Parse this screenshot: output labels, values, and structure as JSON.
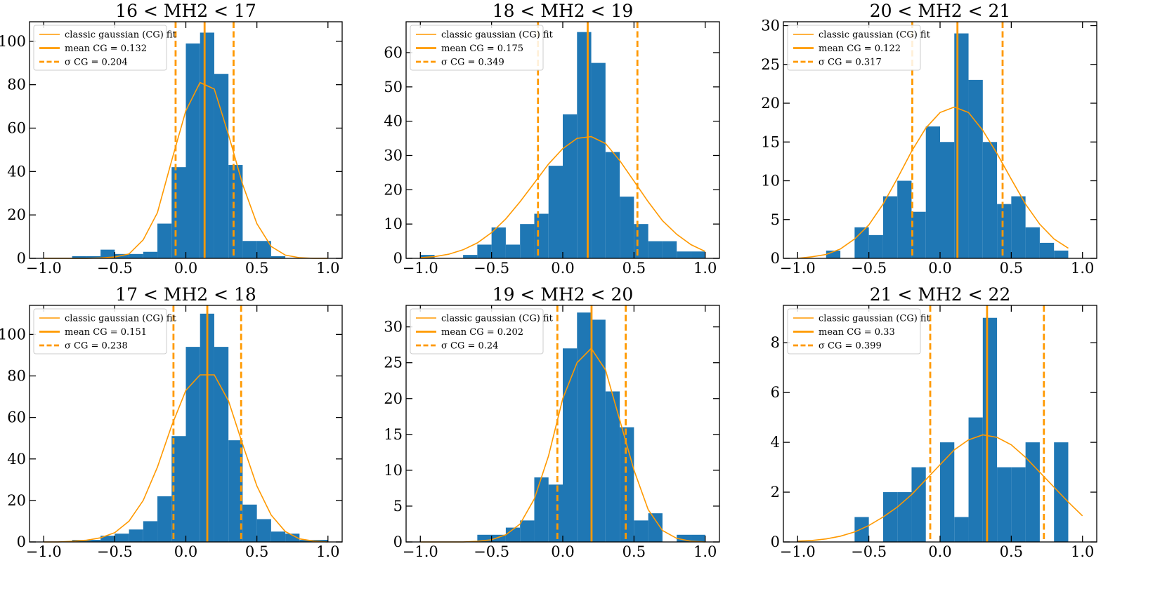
{
  "colors": {
    "bar": "#1f77b4",
    "fit": "#ff9900",
    "axis": "#000000",
    "legend_border": "#cccccc"
  },
  "chart_data": [
    {
      "type": "bar",
      "title": "16 < MH2 < 17",
      "xlim": [
        -1.1,
        1.1
      ],
      "ylim": [
        0,
        109
      ],
      "xticks": [
        -1.0,
        -0.5,
        0.0,
        0.5,
        1.0
      ],
      "xtick_labels": [
        "−1.0",
        "−0.5",
        "0.0",
        "0.5",
        "1.0"
      ],
      "yticks": [
        0,
        20,
        40,
        60,
        80,
        100
      ],
      "ytick_labels": [
        "0",
        "20",
        "40",
        "60",
        "80",
        "100"
      ],
      "bin_edges": [
        -1.0,
        -0.9,
        -0.8,
        -0.7,
        -0.6,
        -0.5,
        -0.4,
        -0.3,
        -0.2,
        -0.1,
        0.0,
        0.1,
        0.2,
        0.3,
        0.4,
        0.5,
        0.6,
        0.7,
        0.8,
        0.9,
        1.0
      ],
      "counts": [
        0,
        0,
        1,
        1,
        4,
        2,
        2,
        3,
        16,
        42,
        99,
        104,
        85,
        43,
        8,
        8,
        1,
        0,
        0,
        0
      ],
      "fit": {
        "x": [
          -1.0,
          -0.9,
          -0.8,
          -0.7,
          -0.6,
          -0.5,
          -0.4,
          -0.3,
          -0.2,
          -0.1,
          0.0,
          0.1,
          0.2,
          0.3,
          0.4,
          0.5,
          0.6,
          0.7,
          0.8,
          0.9,
          1.0
        ],
        "y": [
          0,
          0,
          0,
          0,
          0.2,
          0.6,
          2,
          8.5,
          21,
          45,
          68,
          81,
          78,
          57,
          34,
          16,
          5.5,
          1.5,
          0.3,
          0,
          0
        ]
      },
      "mean": 0.132,
      "sigma": 0.204,
      "legend": [
        "classic gaussian (CG) fit",
        "mean CG = 0.132",
        "σ CG = 0.204"
      ]
    },
    {
      "type": "bar",
      "title": "18 < MH2 < 19",
      "xlim": [
        -1.1,
        1.1
      ],
      "ylim": [
        0,
        69
      ],
      "xticks": [
        -1.0,
        -0.5,
        0.0,
        0.5,
        1.0
      ],
      "xtick_labels": [
        "−1.0",
        "−0.5",
        "0.0",
        "0.5",
        "1.0"
      ],
      "yticks": [
        0,
        10,
        20,
        30,
        40,
        50,
        60
      ],
      "ytick_labels": [
        "0",
        "10",
        "20",
        "30",
        "40",
        "50",
        "60"
      ],
      "bin_edges": [
        -1.0,
        -0.9,
        -0.8,
        -0.7,
        -0.6,
        -0.5,
        -0.4,
        -0.3,
        -0.2,
        -0.1,
        0.0,
        0.1,
        0.2,
        0.3,
        0.4,
        0.5,
        0.6,
        0.7,
        0.8,
        0.9,
        1.0
      ],
      "counts": [
        1,
        0,
        0,
        1,
        4,
        9,
        4,
        10,
        13,
        27,
        42,
        66,
        57,
        31,
        18,
        10,
        5,
        5,
        2,
        2
      ],
      "fit": {
        "x": [
          -1.0,
          -0.9,
          -0.8,
          -0.7,
          -0.6,
          -0.5,
          -0.4,
          -0.3,
          -0.2,
          -0.1,
          0.0,
          0.1,
          0.2,
          0.3,
          0.4,
          0.5,
          0.6,
          0.7,
          0.8,
          0.9,
          1.0
        ],
        "y": [
          0.2,
          0.5,
          1.2,
          2.5,
          4.5,
          7.5,
          11.5,
          16.5,
          22,
          27.5,
          32,
          35,
          35.5,
          33.5,
          28.5,
          22.5,
          16.5,
          11,
          7,
          4,
          2
        ]
      },
      "mean": 0.175,
      "sigma": 0.349,
      "legend": [
        "classic gaussian (CG) fit",
        "mean CG = 0.175",
        "σ CG = 0.349"
      ]
    },
    {
      "type": "bar",
      "title": "20 < MH2 < 21",
      "xlim": [
        -1.1,
        1.1
      ],
      "ylim": [
        0,
        30.5
      ],
      "xticks": [
        -1.0,
        -0.5,
        0.0,
        0.5,
        1.0
      ],
      "xtick_labels": [
        "−1.0",
        "−0.5",
        "0.0",
        "0.5",
        "1.0"
      ],
      "yticks": [
        0,
        5,
        10,
        15,
        20,
        25,
        30
      ],
      "ytick_labels": [
        "0",
        "5",
        "10",
        "15",
        "20",
        "25",
        "30"
      ],
      "bin_edges": [
        -1.0,
        -0.9,
        -0.8,
        -0.7,
        -0.6,
        -0.5,
        -0.4,
        -0.3,
        -0.2,
        -0.1,
        0.0,
        0.1,
        0.2,
        0.3,
        0.4,
        0.5,
        0.6,
        0.7,
        0.8,
        0.9,
        1.0
      ],
      "counts": [
        0,
        0,
        1,
        0,
        4,
        3,
        8,
        10,
        6,
        17,
        15,
        29,
        23,
        15,
        7,
        8,
        4,
        2,
        1,
        0
      ],
      "fit": {
        "x": [
          -1.0,
          -0.9,
          -0.8,
          -0.7,
          -0.6,
          -0.5,
          -0.4,
          -0.3,
          -0.2,
          -0.1,
          0.0,
          0.1,
          0.2,
          0.3,
          0.4,
          0.5,
          0.6,
          0.7,
          0.8,
          0.9
        ],
        "y": [
          0,
          0.2,
          0.5,
          1.2,
          2.5,
          4.3,
          7,
          10.3,
          13.8,
          16.8,
          18.8,
          19.5,
          18.8,
          16.5,
          13.5,
          10.2,
          7,
          4.4,
          2.5,
          1.3
        ]
      },
      "mean": 0.122,
      "sigma": 0.317,
      "legend": [
        "classic gaussian (CG) fit",
        "mean CG = 0.122",
        "σ CG = 0.317"
      ]
    },
    {
      "type": "bar",
      "title": "17 < MH2 < 18",
      "xlim": [
        -1.1,
        1.1
      ],
      "ylim": [
        0,
        114
      ],
      "xticks": [
        -1.0,
        -0.5,
        0.0,
        0.5,
        1.0
      ],
      "xtick_labels": [
        "−1.0",
        "−0.5",
        "0.0",
        "0.5",
        "1.0"
      ],
      "yticks": [
        0,
        20,
        40,
        60,
        80,
        100
      ],
      "ytick_labels": [
        "0",
        "20",
        "40",
        "60",
        "80",
        "100"
      ],
      "bin_edges": [
        -1.0,
        -0.9,
        -0.8,
        -0.7,
        -0.6,
        -0.5,
        -0.4,
        -0.3,
        -0.2,
        -0.1,
        0.0,
        0.1,
        0.2,
        0.3,
        0.4,
        0.5,
        0.6,
        0.7,
        0.8,
        0.9,
        1.0
      ],
      "counts": [
        0,
        0,
        1,
        1,
        3,
        4,
        6,
        10,
        22,
        51,
        94,
        110,
        94,
        49,
        18,
        11,
        5,
        4,
        1,
        1
      ],
      "fit": {
        "x": [
          -1.0,
          -0.9,
          -0.8,
          -0.7,
          -0.6,
          -0.5,
          -0.4,
          -0.3,
          -0.2,
          -0.1,
          0.0,
          0.1,
          0.2,
          0.3,
          0.4,
          0.5,
          0.6,
          0.7,
          0.8,
          0.9,
          1.0
        ],
        "y": [
          0,
          0,
          0.3,
          0.8,
          2,
          4.5,
          10,
          20,
          36,
          56,
          73,
          80.5,
          80.5,
          68,
          47,
          27,
          13,
          5,
          1.5,
          0.4,
          0
        ]
      },
      "mean": 0.151,
      "sigma": 0.238,
      "legend": [
        "classic gaussian (CG) fit",
        "mean CG = 0.151",
        "σ CG = 0.238"
      ]
    },
    {
      "type": "bar",
      "title": "19 < MH2 < 20",
      "xlim": [
        -1.1,
        1.1
      ],
      "ylim": [
        0,
        33
      ],
      "xticks": [
        -1.0,
        -0.5,
        0.0,
        0.5,
        1.0
      ],
      "xtick_labels": [
        "−1.0",
        "−0.5",
        "0.0",
        "0.5",
        "1.0"
      ],
      "yticks": [
        0,
        5,
        10,
        15,
        20,
        25,
        30
      ],
      "ytick_labels": [
        "0",
        "5",
        "10",
        "15",
        "20",
        "25",
        "30"
      ],
      "bin_edges": [
        -1.0,
        -0.9,
        -0.8,
        -0.7,
        -0.6,
        -0.5,
        -0.4,
        -0.3,
        -0.2,
        -0.1,
        0.0,
        0.1,
        0.2,
        0.3,
        0.4,
        0.5,
        0.6,
        0.7,
        0.8,
        0.9,
        1.0
      ],
      "counts": [
        0,
        0,
        0,
        0,
        1,
        1,
        2,
        3,
        9,
        8,
        27,
        32,
        31,
        21,
        16,
        3,
        4,
        0,
        1,
        1
      ],
      "fit": {
        "x": [
          -1.0,
          -0.9,
          -0.8,
          -0.7,
          -0.6,
          -0.5,
          -0.4,
          -0.3,
          -0.2,
          -0.1,
          0.0,
          0.1,
          0.2,
          0.3,
          0.4,
          0.5,
          0.6,
          0.7,
          0.8,
          0.9,
          1.0
        ],
        "y": [
          0,
          0,
          0,
          0,
          0.1,
          0.3,
          1,
          2.5,
          6,
          12,
          20,
          25,
          27,
          24,
          17,
          10,
          4.5,
          1.6,
          0.5,
          0.1,
          0
        ]
      },
      "mean": 0.202,
      "sigma": 0.24,
      "legend": [
        "classic gaussian (CG) fit",
        "mean CG = 0.202",
        "σ CG = 0.24"
      ]
    },
    {
      "type": "bar",
      "title": "21 < MH2 < 22",
      "xlim": [
        -1.1,
        1.1
      ],
      "ylim": [
        0,
        9.5
      ],
      "xticks": [
        -1.0,
        -0.5,
        0.0,
        0.5,
        1.0
      ],
      "xtick_labels": [
        "−1.0",
        "−0.5",
        "0.0",
        "0.5",
        "1.0"
      ],
      "yticks": [
        0,
        2,
        4,
        6,
        8
      ],
      "ytick_labels": [
        "0",
        "2",
        "4",
        "6",
        "8"
      ],
      "bin_edges": [
        -1.0,
        -0.9,
        -0.8,
        -0.7,
        -0.6,
        -0.5,
        -0.4,
        -0.3,
        -0.2,
        -0.1,
        0.0,
        0.1,
        0.2,
        0.3,
        0.4,
        0.5,
        0.6,
        0.7,
        0.8,
        0.9,
        1.0
      ],
      "counts": [
        0,
        0,
        0,
        0,
        1,
        0,
        2,
        2,
        3,
        0,
        4,
        1,
        5,
        9,
        3,
        3,
        4,
        0,
        4,
        0
      ],
      "fit": {
        "x": [
          -1.0,
          -0.9,
          -0.8,
          -0.7,
          -0.6,
          -0.5,
          -0.4,
          -0.3,
          -0.2,
          -0.1,
          0.0,
          0.1,
          0.2,
          0.3,
          0.4,
          0.5,
          0.6,
          0.7,
          0.8,
          0.9,
          1.0
        ],
        "y": [
          0.03,
          0.06,
          0.12,
          0.23,
          0.4,
          0.66,
          1.0,
          1.4,
          1.9,
          2.5,
          3.1,
          3.7,
          4.1,
          4.3,
          4.2,
          3.9,
          3.4,
          2.8,
          2.2,
          1.6,
          1.05
        ]
      },
      "mean": 0.33,
      "sigma": 0.399,
      "legend": [
        "classic gaussian (CG) fit",
        "mean CG = 0.33",
        "σ CG = 0.399"
      ]
    }
  ]
}
